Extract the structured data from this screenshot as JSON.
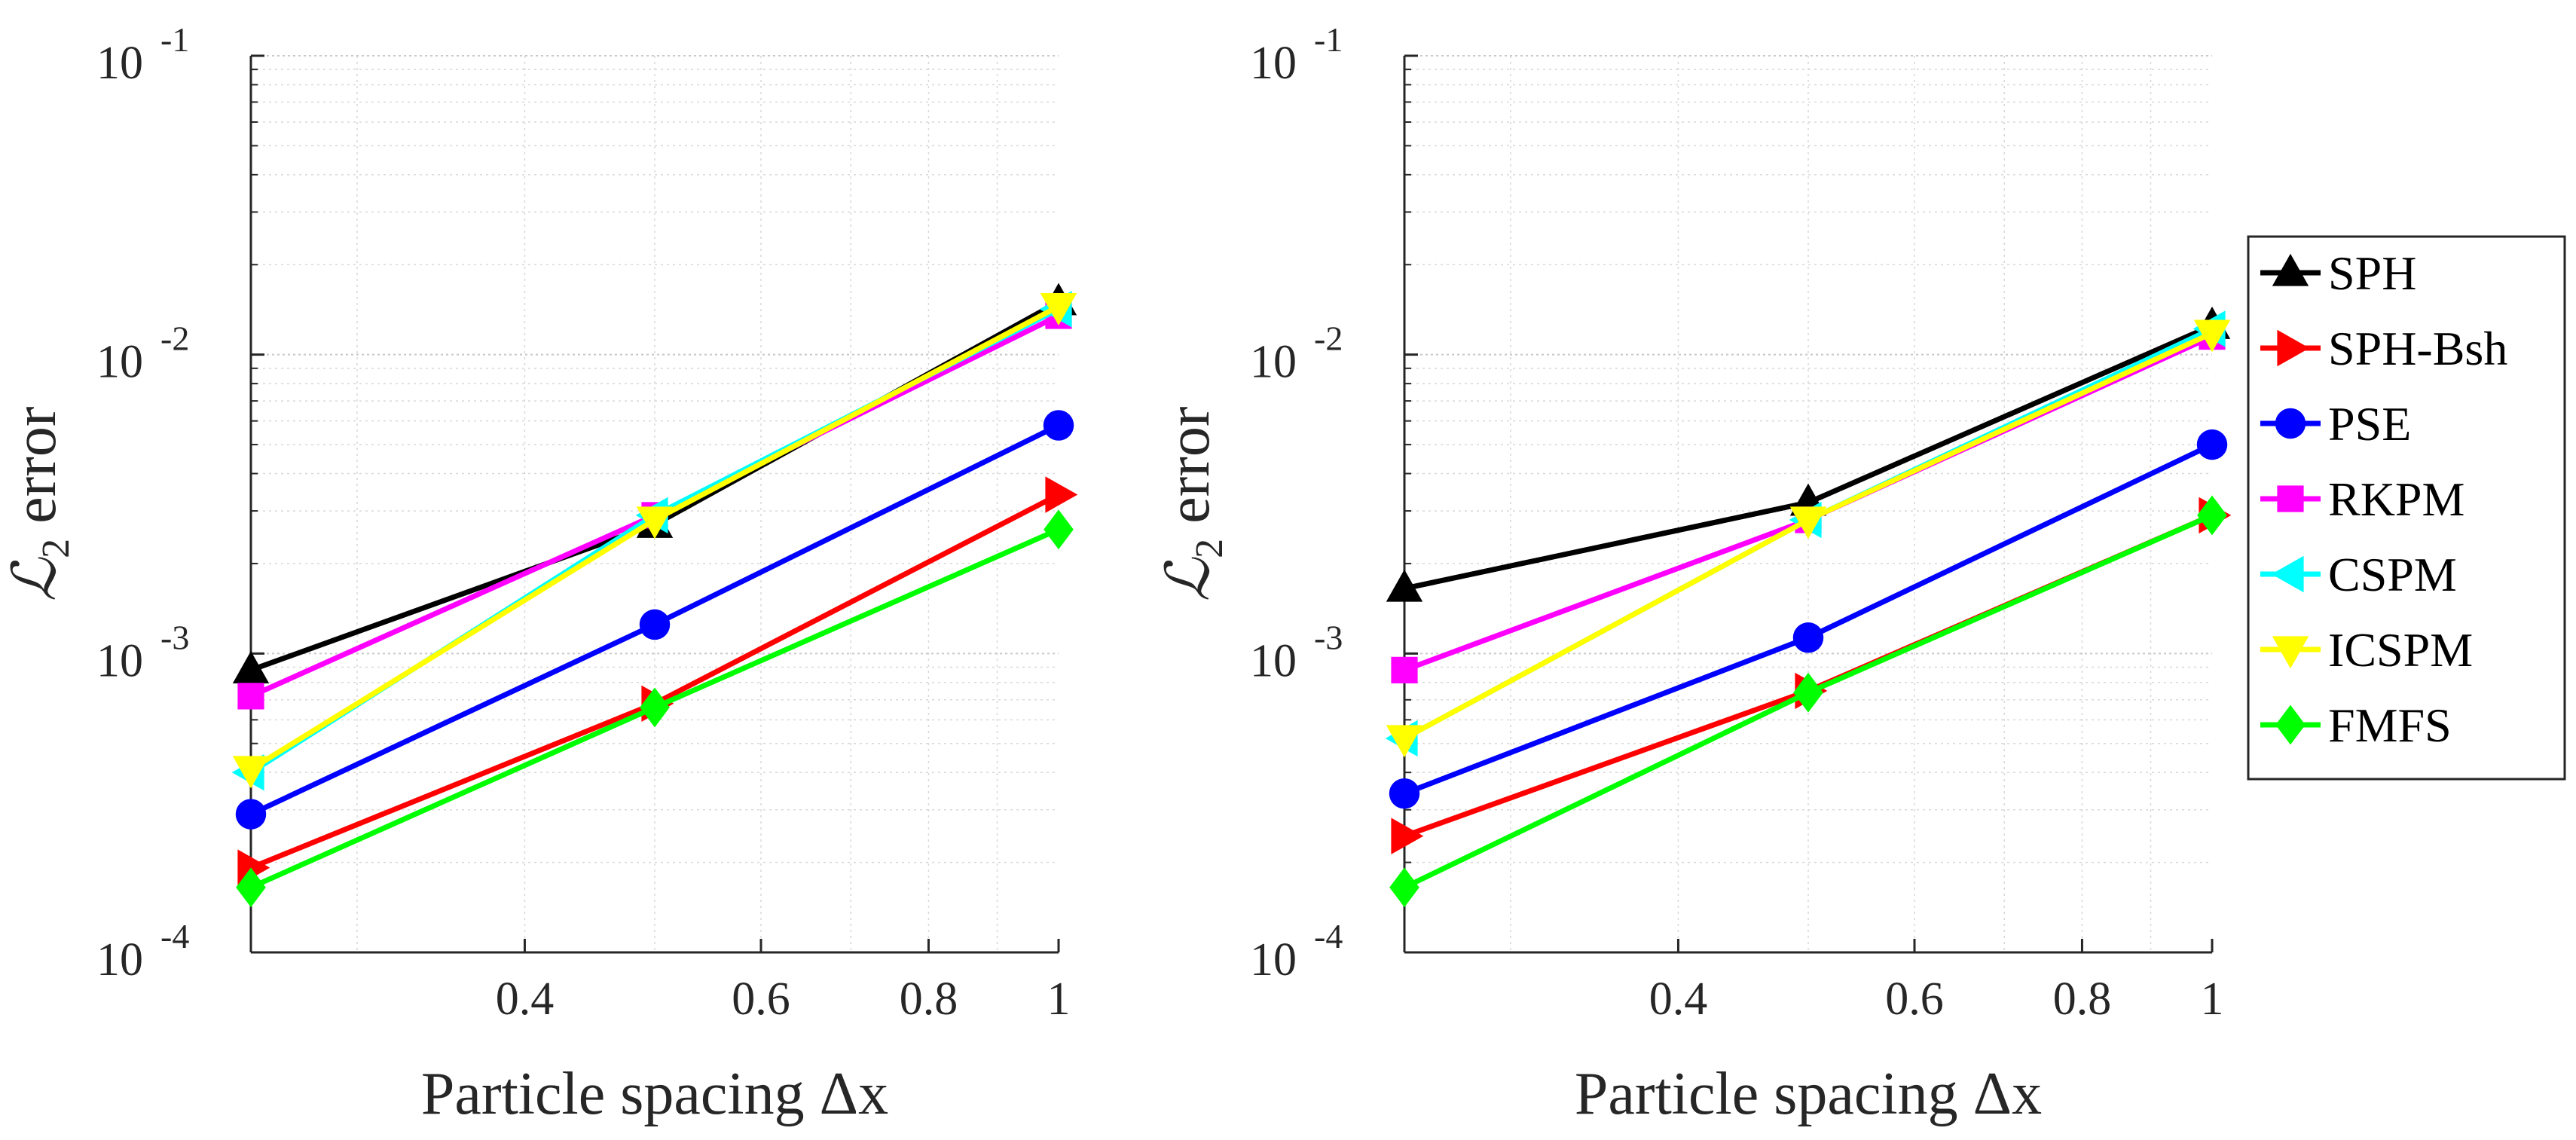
{
  "chart_data": [
    {
      "type": "line",
      "panel": "left",
      "xscale": "log",
      "yscale": "log",
      "xlim": [
        0.25,
        1
      ],
      "ylim": [
        0.0001,
        0.1
      ],
      "xticks": [
        0.4,
        0.6,
        0.8,
        1
      ],
      "xtick_labels": [
        "0.4",
        "0.6",
        "0.8",
        "1"
      ],
      "yticks": [
        0.1,
        0.01,
        0.001,
        0.0001
      ],
      "ytick_base": [
        "10",
        "10",
        "10",
        "10"
      ],
      "ytick_exp": [
        "-1",
        "-2",
        "-3",
        "-4"
      ],
      "xlabel": "Particle spacing Δx",
      "ylabel_main": "ℒ",
      "ylabel_sub": "2",
      "ylabel_rest": "error",
      "grid": true,
      "x": [
        0.25,
        0.5,
        1
      ],
      "series": [
        {
          "name": "SPH",
          "values": [
            0.00088,
            0.0027,
            0.015
          ]
        },
        {
          "name": "SPH-Bsh",
          "values": [
            0.000192,
            0.00068,
            0.0034
          ]
        },
        {
          "name": "PSE",
          "values": [
            0.00029,
            0.00125,
            0.0058
          ]
        },
        {
          "name": "RKPM",
          "values": [
            0.00072,
            0.0029,
            0.0135
          ]
        },
        {
          "name": "CSPM",
          "values": [
            0.0004,
            0.0029,
            0.0142
          ]
        },
        {
          "name": "ICSPM",
          "values": [
            0.00041,
            0.0028,
            0.0145
          ]
        },
        {
          "name": "FMFS",
          "values": [
            0.000165,
            0.00066,
            0.0026
          ]
        }
      ]
    },
    {
      "type": "line",
      "panel": "right",
      "xscale": "log",
      "yscale": "log",
      "xlim": [
        0.25,
        1
      ],
      "ylim": [
        0.0001,
        0.1
      ],
      "xticks": [
        0.4,
        0.6,
        0.8,
        1
      ],
      "xtick_labels": [
        "0.4",
        "0.6",
        "0.8",
        "1"
      ],
      "yticks": [
        0.1,
        0.01,
        0.001,
        0.0001
      ],
      "ytick_base": [
        "10",
        "10",
        "10",
        "10"
      ],
      "ytick_exp": [
        "-1",
        "-2",
        "-3",
        "-4"
      ],
      "xlabel": "Particle spacing Δx",
      "ylabel_main": "ℒ",
      "ylabel_sub": "2",
      "ylabel_rest": "error",
      "grid": true,
      "legend_position": "outside-right",
      "x": [
        0.25,
        0.5,
        1
      ],
      "series": [
        {
          "name": "SPH",
          "values": [
            0.00165,
            0.0032,
            0.0125
          ]
        },
        {
          "name": "SPH-Bsh",
          "values": [
            0.000245,
            0.00075,
            0.0029
          ]
        },
        {
          "name": "PSE",
          "values": [
            0.00034,
            0.00113,
            0.005
          ]
        },
        {
          "name": "RKPM",
          "values": [
            0.00088,
            0.0028,
            0.0115
          ]
        },
        {
          "name": "CSPM",
          "values": [
            0.00052,
            0.0028,
            0.0122
          ]
        },
        {
          "name": "ICSPM",
          "values": [
            0.00052,
            0.0028,
            0.0118
          ]
        },
        {
          "name": "FMFS",
          "values": [
            0.000165,
            0.00074,
            0.0029
          ]
        }
      ]
    }
  ],
  "legend": [
    {
      "name": "SPH",
      "color": "#000000",
      "marker": "triangle-up"
    },
    {
      "name": "SPH-Bsh",
      "color": "#ff0000",
      "marker": "triangle-right"
    },
    {
      "name": "PSE",
      "color": "#0000ff",
      "marker": "circle"
    },
    {
      "name": "RKPM",
      "color": "#ff00ff",
      "marker": "square"
    },
    {
      "name": "CSPM",
      "color": "#00ffff",
      "marker": "triangle-left"
    },
    {
      "name": "ICSPM",
      "color": "#ffff00",
      "marker": "triangle-down"
    },
    {
      "name": "FMFS",
      "color": "#00ff00",
      "marker": "diamond"
    }
  ]
}
